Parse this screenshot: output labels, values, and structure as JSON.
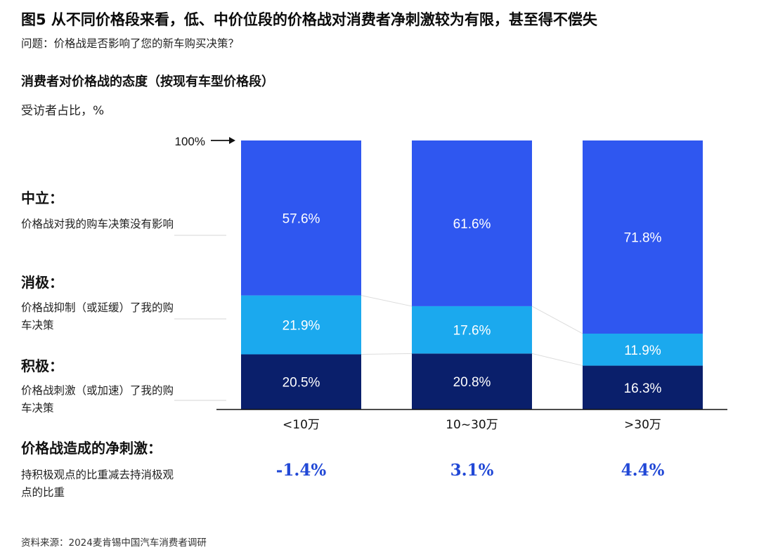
{
  "header": {
    "title": "图5 从不同价格段来看，低、中价位段的价格战对消费者净刺激较为有限，甚至得不偿失",
    "question": "问题：价格战是否影响了您的新车购买决策？",
    "subtitle": "消费者对价格战的态度（按现有车型价格段）",
    "unit": "受访者占比，%"
  },
  "legend": {
    "neutral": {
      "head": "中立：",
      "desc": "价格战对我的购车决策没有影响"
    },
    "negative": {
      "head": "消极：",
      "desc": "价格战抑制（或延缓）了我的购车决策"
    },
    "positive": {
      "head": "积极：",
      "desc": "价格战刺激（或加速）了我的购车决策"
    }
  },
  "net": {
    "head": "价格战造成的净刺激：",
    "desc": "持积极观点的比重减去持消极观点的比重",
    "values": [
      "-1.4%",
      "3.1%",
      "4.4%"
    ]
  },
  "marker": {
    "text": "100%"
  },
  "source": "资料来源：2024麦肯锡中国汽车消费者调研",
  "colors": {
    "neutral": "#2f57f0",
    "negative": "#1ba9ee",
    "positive": "#0a1f6b",
    "net": "#2148d6"
  },
  "chart_data": {
    "type": "bar",
    "stacked": true,
    "categories": [
      "<10万",
      "10~30万",
      ">30万"
    ],
    "series": [
      {
        "name": "积极",
        "values": [
          20.5,
          20.8,
          16.3
        ],
        "labels": [
          "20.5%",
          "20.8%",
          "16.3%"
        ]
      },
      {
        "name": "消极",
        "values": [
          21.9,
          17.6,
          11.9
        ],
        "labels": [
          "21.9%",
          "17.6%",
          "11.9%"
        ]
      },
      {
        "name": "中立",
        "values": [
          57.6,
          61.6,
          71.8
        ],
        "labels": [
          "57.6%",
          "61.6%",
          "71.8%"
        ]
      }
    ],
    "ylim": [
      0,
      100
    ],
    "grid": false,
    "legend": "left"
  }
}
